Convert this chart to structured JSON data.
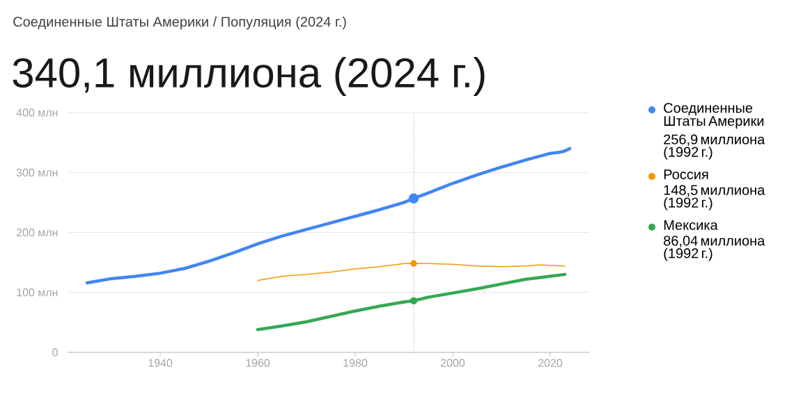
{
  "chart_data": {
    "type": "line",
    "title": "Соединенные Штаты Америки / Популяция (2024 г.)",
    "subtitle": "340,1 миллиона (2024 г.)",
    "series": [
      {
        "name": "Соединенные Штаты Америки",
        "color": "#4285f4",
        "x": [
          1925,
          1930,
          1935,
          1940,
          1945,
          1950,
          1955,
          1960,
          1965,
          1970,
          1975,
          1980,
          1985,
          1990,
          1992,
          1995,
          2000,
          2005,
          2010,
          2015,
          2020,
          2022,
          2023,
          2024
        ],
        "values": [
          116,
          123,
          127,
          132,
          140,
          152,
          166,
          181,
          194,
          205,
          216,
          227,
          238,
          250,
          256.9,
          266,
          282,
          296,
          309,
          321,
          332,
          334,
          336,
          340.1
        ]
      },
      {
        "name": "Россия",
        "color": "#f29900",
        "x": [
          1960,
          1965,
          1970,
          1975,
          1980,
          1985,
          1990,
          1992,
          1995,
          2000,
          2005,
          2010,
          2015,
          2018,
          2020,
          2023
        ],
        "values": [
          120,
          127,
          130,
          134,
          139,
          143,
          148,
          148.5,
          148,
          147,
          144,
          143,
          144,
          146,
          145,
          144
        ]
      },
      {
        "name": "Мексика",
        "color": "#34a853",
        "x": [
          1960,
          1965,
          1970,
          1975,
          1980,
          1985,
          1990,
          1992,
          1995,
          2000,
          2005,
          2010,
          2015,
          2020,
          2023
        ],
        "values": [
          38,
          44,
          51,
          60,
          69,
          77,
          84,
          86.04,
          92,
          99,
          106,
          114,
          122,
          127,
          130
        ]
      }
    ],
    "annotations": [
      "256,9 миллиона (1992 г.)",
      "148,5 миллиона (1992 г.)",
      "86,04 миллиона (1992 г.)"
    ],
    "ref_lines": [
      {
        "axis": "x",
        "value": 1992,
        "color": "#9e9e9e",
        "line_style": "dotted"
      }
    ],
    "xlim": [
      1921,
      2028
    ],
    "ylim": [
      0,
      400
    ],
    "xticks": [
      1940,
      1960,
      1980,
      2000,
      2020
    ],
    "yticks": [
      {
        "value": 0,
        "label": "0"
      },
      {
        "value": 100,
        "label": "100 млн"
      },
      {
        "value": 200,
        "label": "200 млн"
      },
      {
        "value": 300,
        "label": "300 млн"
      },
      {
        "value": 400,
        "label": "400 млн"
      }
    ],
    "grid": "y",
    "legend": "right"
  }
}
